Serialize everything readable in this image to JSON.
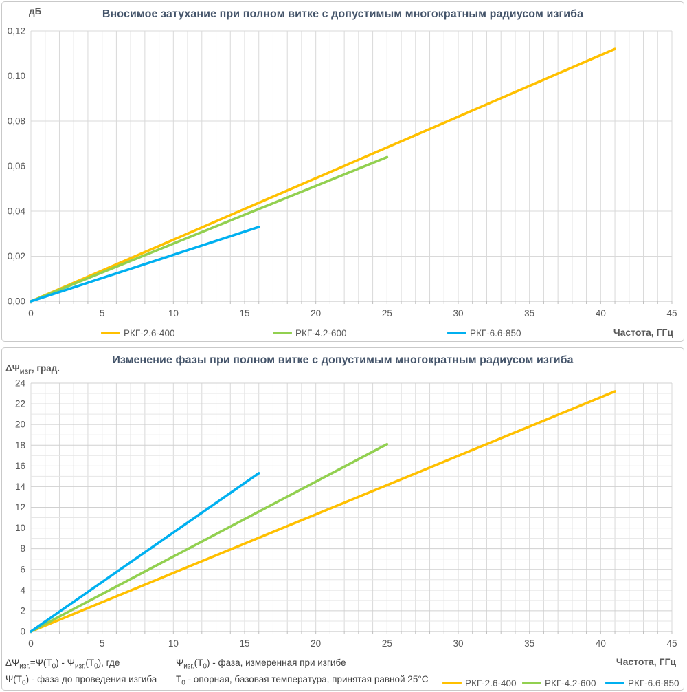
{
  "colors": {
    "grid": "#D9D9D9",
    "grid_major": "#D0D0D0",
    "grid_minor": "#E6E6E6",
    "axis": "#BFBFBF",
    "tick_text": "#595959",
    "title": "#44546A",
    "footnote_text": "#404040"
  },
  "chart_data": [
    {
      "type": "line",
      "title": "Вносимое затухание при полном витке с допустимым многократным радиусом изгиба",
      "y_unit": "дБ",
      "x_axis_label": "Частота, ГГц",
      "xlim": [
        0,
        45
      ],
      "x_major_step": 5,
      "x_minor_step": 1,
      "ylim": [
        0,
        0.12
      ],
      "y_major_step": 0.02,
      "x_tick_labels": [
        "0",
        "5",
        "10",
        "15",
        "20",
        "25",
        "30",
        "35",
        "40",
        "45"
      ],
      "y_tick_labels": [
        "0,00",
        "0,02",
        "0,04",
        "0,06",
        "0,08",
        "0,10",
        "0,12"
      ],
      "grid": "vertical every 1 GHz, horizontal every 0.02 dB",
      "legend_position": "bottom-center",
      "series": [
        {
          "name": "РКГ-2.6-400",
          "color": "#FFC000",
          "points": [
            [
              0,
              0
            ],
            [
              41,
              0.112
            ]
          ]
        },
        {
          "name": "РКГ-4.2-600",
          "color": "#92D050",
          "points": [
            [
              0,
              0
            ],
            [
              25,
              0.064
            ]
          ]
        },
        {
          "name": "РКГ-6.6-850",
          "color": "#00B0F0",
          "points": [
            [
              0,
              0
            ],
            [
              16,
              0.033
            ]
          ]
        }
      ]
    },
    {
      "type": "line",
      "title": "Изменение фазы при полном витке с допустимым многократным радиусом изгиба",
      "y_unit_segments": [
        {
          "t": "ΔΨ"
        },
        {
          "t": "изг",
          "sub": true
        },
        {
          "t": ", град."
        }
      ],
      "x_axis_label": "Частота, ГГц",
      "xlim": [
        0,
        45
      ],
      "x_major_step": 5,
      "x_minor_step": 1,
      "ylim": [
        0,
        24
      ],
      "y_major_step": 2,
      "y_minor_step": 1,
      "x_tick_labels": [
        "0",
        "5",
        "10",
        "15",
        "20",
        "25",
        "30",
        "35",
        "40",
        "45"
      ],
      "y_tick_labels": [
        "0",
        "2",
        "4",
        "6",
        "8",
        "10",
        "12",
        "14",
        "16",
        "18",
        "20",
        "22",
        "24"
      ],
      "grid": "vertical every 1 GHz, horizontal every 1 deg",
      "legend_position": "bottom-right",
      "series": [
        {
          "name": "РКГ-2.6-400",
          "color": "#FFC000",
          "points": [
            [
              0,
              0
            ],
            [
              41,
              23.2
            ]
          ]
        },
        {
          "name": "РКГ-4.2-600",
          "color": "#92D050",
          "points": [
            [
              0,
              0
            ],
            [
              25,
              18.1
            ]
          ]
        },
        {
          "name": "РКГ-6.6-850",
          "color": "#00B0F0",
          "points": [
            [
              0,
              0
            ],
            [
              16,
              15.3
            ]
          ]
        }
      ]
    }
  ],
  "footnote": {
    "col1": [
      [
        {
          "t": "ΔΨ"
        },
        {
          "t": "изг.",
          "sub": true
        },
        {
          "t": "=Ψ(T"
        },
        {
          "t": "0",
          "sub": true
        },
        {
          "t": ") - Ψ"
        },
        {
          "t": "изг.",
          "sub": true
        },
        {
          "t": "(T"
        },
        {
          "t": "0",
          "sub": true
        },
        {
          "t": "), где"
        }
      ],
      [
        {
          "t": "Ψ(T"
        },
        {
          "t": "0",
          "sub": true
        },
        {
          "t": ") - фаза до проведения изгиба"
        }
      ]
    ],
    "col2": [
      [
        {
          "t": "Ψ"
        },
        {
          "t": "изг.",
          "sub": true
        },
        {
          "t": "(T"
        },
        {
          "t": "0",
          "sub": true
        },
        {
          "t": ") - фаза,  измеренная при изгибе"
        }
      ],
      [
        {
          "t": "T"
        },
        {
          "t": "0",
          "sub": true
        },
        {
          "t": " - опорная, базовая температура, принятая равной 25°С"
        }
      ]
    ]
  }
}
